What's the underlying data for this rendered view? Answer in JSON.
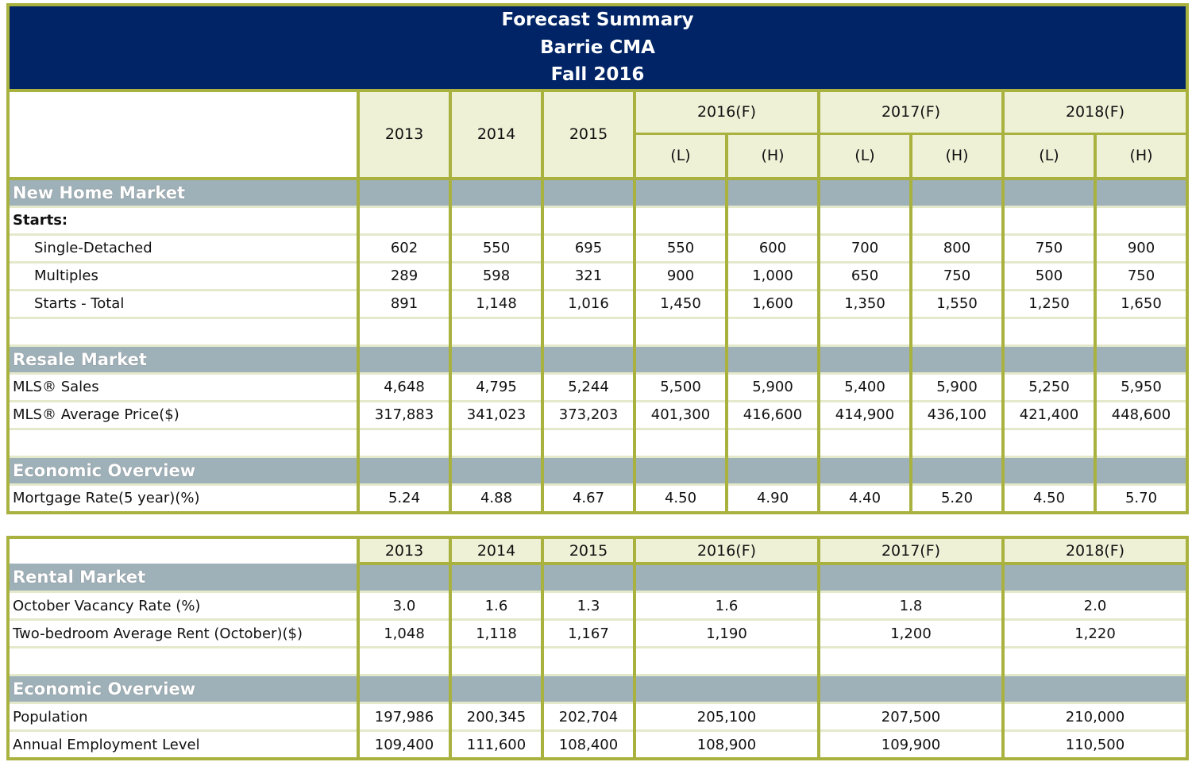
{
  "title": {
    "line1": "Forecast Summary",
    "line2": "Barrie CMA",
    "line3": "Fall 2016"
  },
  "colors": {
    "title_bg": "#002466",
    "border": "#a9b23f",
    "header_bg": "#eef1d6",
    "section_bg": "#9eb0b8"
  },
  "top_table": {
    "years": [
      "2013",
      "2014",
      "2015"
    ],
    "forecast_years": [
      "2016(F)",
      "2017(F)",
      "2018(F)"
    ],
    "sub_labels": [
      "(L)",
      "(H)"
    ],
    "rows": [
      {
        "type": "section",
        "label": "New Home Market"
      },
      {
        "type": "row",
        "label": "Starts:",
        "style": "bold",
        "values": [
          "",
          "",
          "",
          "",
          "",
          "",
          "",
          "",
          ""
        ]
      },
      {
        "type": "row",
        "label": "Single-Detached",
        "style": "indent",
        "values": [
          "602",
          "550",
          "695",
          "550",
          "600",
          "700",
          "800",
          "750",
          "900"
        ]
      },
      {
        "type": "row",
        "label": "Multiples",
        "style": "indent",
        "values": [
          "289",
          "598",
          "321",
          "900",
          "1,000",
          "650",
          "750",
          "500",
          "750"
        ]
      },
      {
        "type": "row",
        "label": "Starts - Total",
        "style": "indent",
        "values": [
          "891",
          "1,148",
          "1,016",
          "1,450",
          "1,600",
          "1,350",
          "1,550",
          "1,250",
          "1,650"
        ]
      },
      {
        "type": "row",
        "label": "",
        "style": "",
        "values": [
          "",
          "",
          "",
          "",
          "",
          "",
          "",
          "",
          ""
        ]
      },
      {
        "type": "section",
        "label": "Resale Market"
      },
      {
        "type": "row",
        "label": "MLS® Sales",
        "style": "",
        "values": [
          "4,648",
          "4,795",
          "5,244",
          "5,500",
          "5,900",
          "5,400",
          "5,900",
          "5,250",
          "5,950"
        ]
      },
      {
        "type": "row",
        "label": "MLS® Average Price($)",
        "style": "",
        "values": [
          "317,883",
          "341,023",
          "373,203",
          "401,300",
          "416,600",
          "414,900",
          "436,100",
          "421,400",
          "448,600"
        ]
      },
      {
        "type": "row",
        "label": "",
        "style": "",
        "values": [
          "",
          "",
          "",
          "",
          "",
          "",
          "",
          "",
          ""
        ]
      },
      {
        "type": "section",
        "label": "Economic Overview"
      },
      {
        "type": "row",
        "label": "Mortgage Rate(5 year)(%)",
        "style": "",
        "values": [
          "5.24",
          "4.88",
          "4.67",
          "4.50",
          "4.90",
          "4.40",
          "5.20",
          "4.50",
          "5.70"
        ]
      }
    ]
  },
  "bottom_table": {
    "years": [
      "2013",
      "2014",
      "2015",
      "2016(F)",
      "2017(F)",
      "2018(F)"
    ],
    "rows": [
      {
        "type": "section",
        "label": "Rental Market"
      },
      {
        "type": "row",
        "label": "October Vacancy Rate (%)",
        "style": "",
        "values": [
          "3.0",
          "1.6",
          "1.3",
          "1.6",
          "1.8",
          "2.0"
        ]
      },
      {
        "type": "row",
        "label": "Two-bedroom Average Rent (October)($)",
        "style": "",
        "values": [
          "1,048",
          "1,118",
          "1,167",
          "1,190",
          "1,200",
          "1,220"
        ]
      },
      {
        "type": "row",
        "label": "",
        "style": "",
        "values": [
          "",
          "",
          "",
          "",
          "",
          "",
          ""
        ]
      },
      {
        "type": "section",
        "label": "Economic Overview"
      },
      {
        "type": "row",
        "label": "Population",
        "style": "",
        "values": [
          "197,986",
          "200,345",
          "202,704",
          "205,100",
          "207,500",
          "210,000"
        ]
      },
      {
        "type": "row",
        "label": "Annual Employment Level",
        "style": "",
        "values": [
          "109,400",
          "111,600",
          "108,400",
          "108,900",
          "109,900",
          "110,500"
        ]
      }
    ]
  }
}
